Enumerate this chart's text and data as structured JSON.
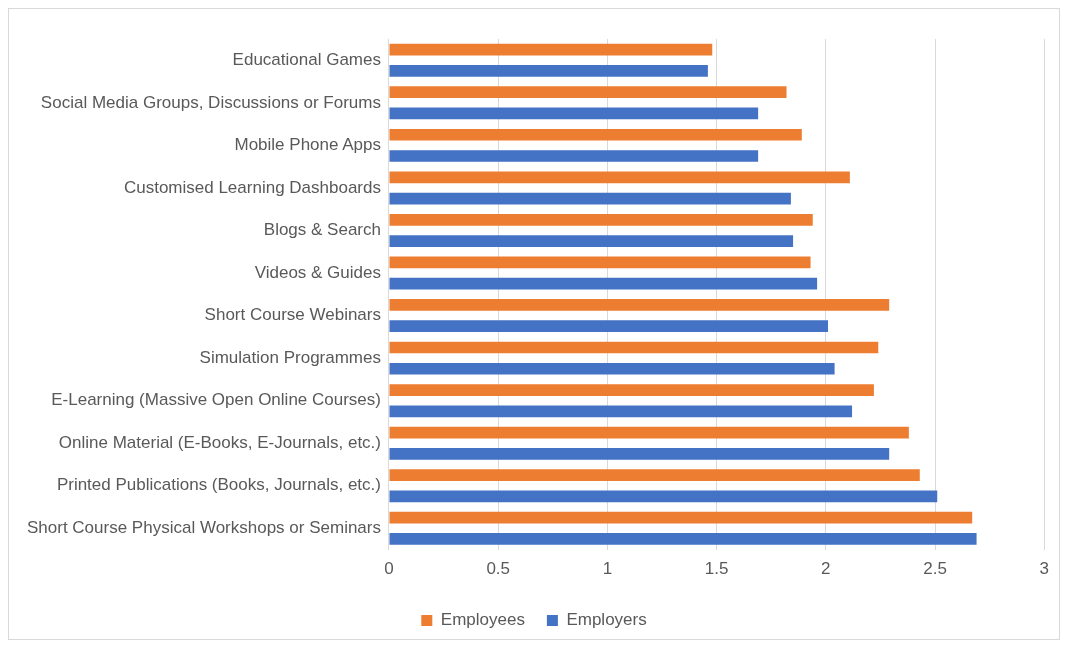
{
  "chart_data": {
    "type": "bar",
    "orientation": "horizontal",
    "categories": [
      "Educational Games",
      "Social Media Groups, Discussions or Forums",
      "Mobile Phone Apps",
      "Customised Learning Dashboards",
      "Blogs & Search",
      "Videos & Guides",
      "Short Course Webinars",
      "Simulation Programmes",
      "E-Learning (Massive Open Online Courses)",
      "Online Material (E-Books, E-Journals, etc.)",
      "Printed Publications (Books, Journals, etc.)",
      "Short Course Physical Workshops or Seminars"
    ],
    "series": [
      {
        "name": "Employees",
        "color": "#ed7d31",
        "values": [
          1.48,
          1.82,
          1.89,
          2.11,
          1.94,
          1.93,
          2.29,
          2.24,
          2.22,
          2.38,
          2.43,
          2.67
        ]
      },
      {
        "name": "Employers",
        "color": "#4472c4",
        "values": [
          1.46,
          1.69,
          1.69,
          1.84,
          1.85,
          1.96,
          2.01,
          2.04,
          2.12,
          2.29,
          2.51,
          2.69
        ]
      }
    ],
    "xlim": [
      0,
      3
    ],
    "xticks": [
      0,
      0.5,
      1,
      1.5,
      2,
      2.5,
      3
    ],
    "grid": "x",
    "legend": "bottom"
  }
}
